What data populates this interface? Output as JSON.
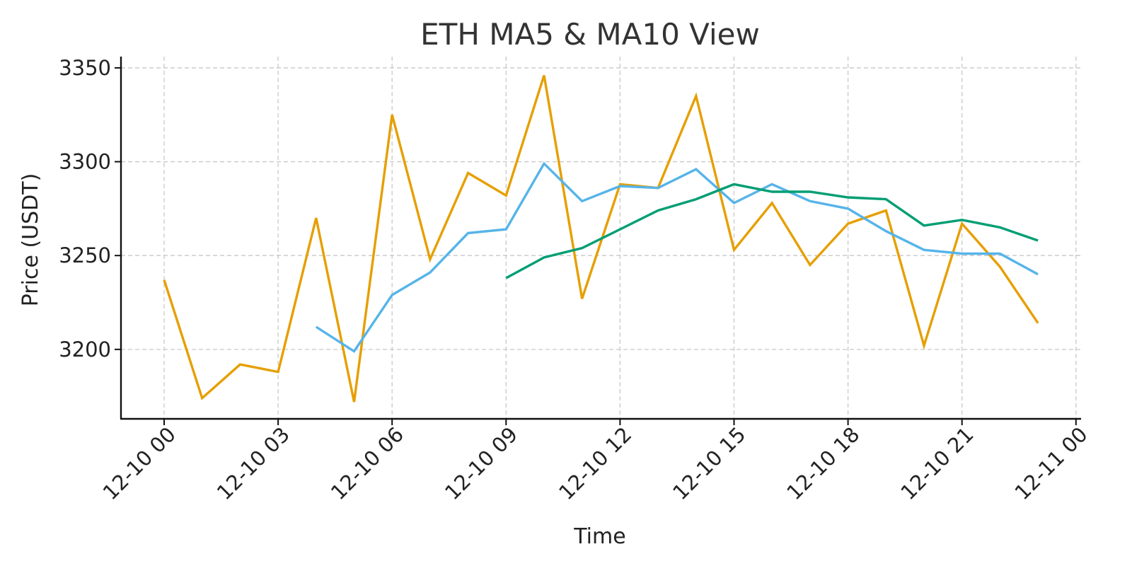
{
  "chart_data": {
    "type": "line",
    "title": "ETH MA5 & MA10 View",
    "xlabel": "Time",
    "ylabel": "Price (USDT)",
    "x": [
      "12-10 00",
      "12-10 01",
      "12-10 02",
      "12-10 03",
      "12-10 04",
      "12-10 05",
      "12-10 06",
      "12-10 07",
      "12-10 08",
      "12-10 09",
      "12-10 10",
      "12-10 11",
      "12-10 12",
      "12-10 13",
      "12-10 14",
      "12-10 15",
      "12-10 16",
      "12-10 17",
      "12-10 18",
      "12-10 19",
      "12-10 20",
      "12-10 21",
      "12-10 22",
      "12-10 23"
    ],
    "x_ticks": [
      "12-10 00",
      "12-10 03",
      "12-10 06",
      "12-10 09",
      "12-10 12",
      "12-10 15",
      "12-10 18",
      "12-10 21",
      "12-11 00"
    ],
    "x_range": [
      "12-10 00",
      "12-11 00"
    ],
    "ylim": [
      3163,
      3356
    ],
    "y_ticks": [
      3200,
      3250,
      3300,
      3350
    ],
    "grid": true,
    "series": [
      {
        "color": "#E69F00",
        "values": [
          3237,
          3174,
          3192,
          3188,
          3270,
          3172,
          3325,
          3248,
          3294,
          3282,
          3346,
          3227,
          3288,
          3286,
          3335,
          3253,
          3278,
          3245,
          3267,
          3274,
          3202,
          3267,
          3244,
          3214
        ]
      },
      {
        "color": "#56B4E9",
        "values": [
          null,
          null,
          null,
          null,
          3212,
          3199,
          3229,
          3241,
          3262,
          3264,
          3299,
          3279,
          3287,
          3286,
          3296,
          3278,
          3288,
          3279,
          3275,
          3263,
          3253,
          3251,
          3251,
          3240
        ]
      },
      {
        "color": "#009E73",
        "values": [
          null,
          null,
          null,
          null,
          null,
          null,
          null,
          null,
          null,
          3238,
          3249,
          3254,
          3264,
          3274,
          3280,
          3288,
          3284,
          3284,
          3281,
          3280,
          3266,
          3269,
          3265,
          3258
        ]
      }
    ]
  }
}
